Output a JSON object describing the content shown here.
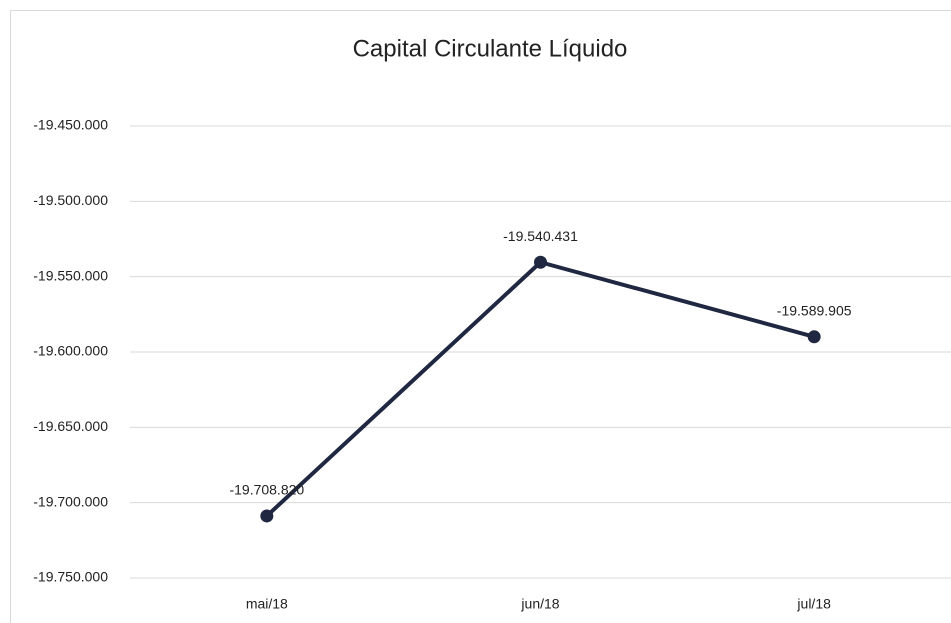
{
  "chart_data": {
    "type": "line",
    "title": "Capital Circulante Líquido",
    "categories": [
      "mai/18",
      "jun/18",
      "jul/18"
    ],
    "series": [
      {
        "color": "#1f2741",
        "values": [
          -19708820,
          -19540431,
          -19589905
        ],
        "value_labels": [
          "-19.708.820",
          "-19.540.431",
          "-19.589.905"
        ]
      }
    ],
    "ylim": [
      -19750000,
      -19450000
    ],
    "yticks": [
      {
        "value": -19750000,
        "label": "-19.750.000"
      },
      {
        "value": -19700000,
        "label": "-19.700.000"
      },
      {
        "value": -19650000,
        "label": "-19.650.000"
      },
      {
        "value": -19600000,
        "label": "-19.600.000"
      },
      {
        "value": -19550000,
        "label": "-19.550.000"
      },
      {
        "value": -19500000,
        "label": "-19.500.000"
      },
      {
        "value": -19450000,
        "label": "-19.450.000"
      }
    ],
    "grid": true
  }
}
